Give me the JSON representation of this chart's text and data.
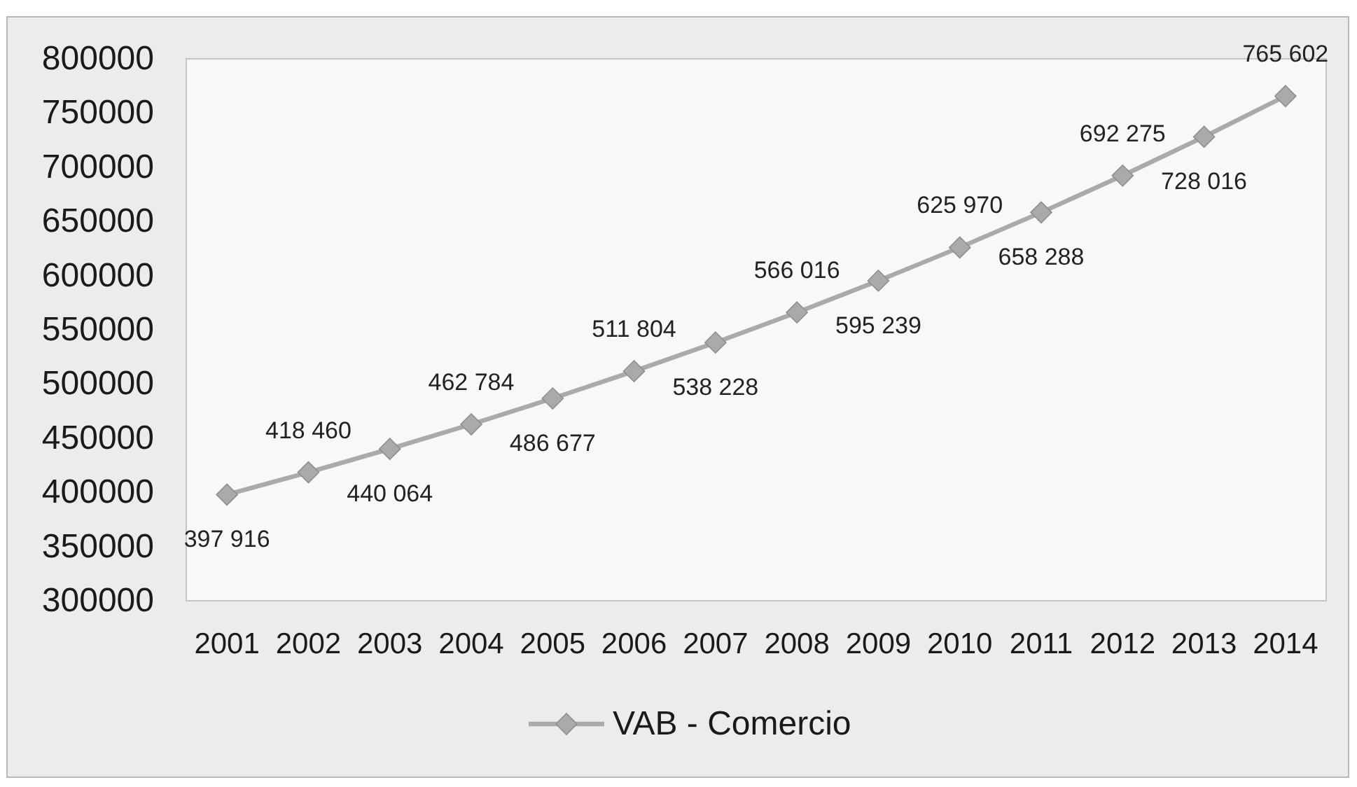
{
  "chart_data": {
    "type": "line",
    "categories": [
      "2001",
      "2002",
      "2003",
      "2004",
      "2005",
      "2006",
      "2007",
      "2008",
      "2009",
      "2010",
      "2011",
      "2012",
      "2013",
      "2014"
    ],
    "series": [
      {
        "name": "VAB - Comercio",
        "color": "#aaaaaa",
        "values": [
          397916,
          418460,
          440064,
          462784,
          486677,
          511804,
          538228,
          566016,
          595239,
          625970,
          658288,
          692275,
          728016,
          765602
        ],
        "value_labels": [
          "397 916",
          "418 460",
          "440 064",
          "462 784",
          "486 677",
          "511 804",
          "538 228",
          "566 016",
          "595 239",
          "625 970",
          "658 288",
          "692 275",
          "728 016",
          "765 602"
        ]
      }
    ],
    "ylim": [
      300000,
      800000
    ],
    "yticks": [
      300000,
      350000,
      400000,
      450000,
      500000,
      550000,
      600000,
      650000,
      700000,
      750000,
      800000
    ],
    "legend": "bottom",
    "marker": "diamond",
    "line_style": "solid"
  }
}
